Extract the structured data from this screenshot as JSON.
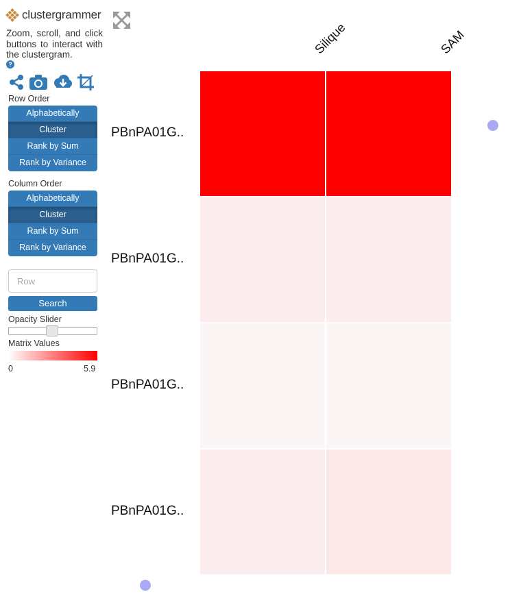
{
  "app": {
    "name": "clustergrammer",
    "instructions": "Zoom, scroll, and click buttons to interact with the clustergram.",
    "help_glyph": "?"
  },
  "toolbar_icons": [
    "share-icon",
    "camera-icon",
    "cloud-download-icon",
    "crop-icon"
  ],
  "row_order": {
    "label": "Row Order",
    "options": [
      "Alphabetically",
      "Cluster",
      "Rank by Sum",
      "Rank by Variance"
    ],
    "selected": "Cluster"
  },
  "column_order": {
    "label": "Column Order",
    "options": [
      "Alphabetically",
      "Cluster",
      "Rank by Sum",
      "Rank by Variance"
    ],
    "selected": "Cluster"
  },
  "search": {
    "placeholder": "Row",
    "button_label": "Search"
  },
  "opacity_slider": {
    "label": "Opacity Slider",
    "value": 0.5
  },
  "matrix_values": {
    "label": "Matrix Values",
    "min": "0",
    "max": "5.9",
    "color_low": "#ffffff",
    "color_high": "#ff0000"
  },
  "columns": [
    "Silique",
    "SAM"
  ],
  "rows": [
    "PBnPA01G..",
    "PBnPA01G..",
    "PBnPA01G..",
    "PBnPA01G.."
  ],
  "matrix": [
    [
      "#ff0000",
      "#ff0000"
    ],
    [
      "#fbeded",
      "#fbeded"
    ],
    [
      "#fbf5f5",
      "#fbf5f5"
    ],
    [
      "#fbeded",
      "#fbe8e8"
    ]
  ]
}
